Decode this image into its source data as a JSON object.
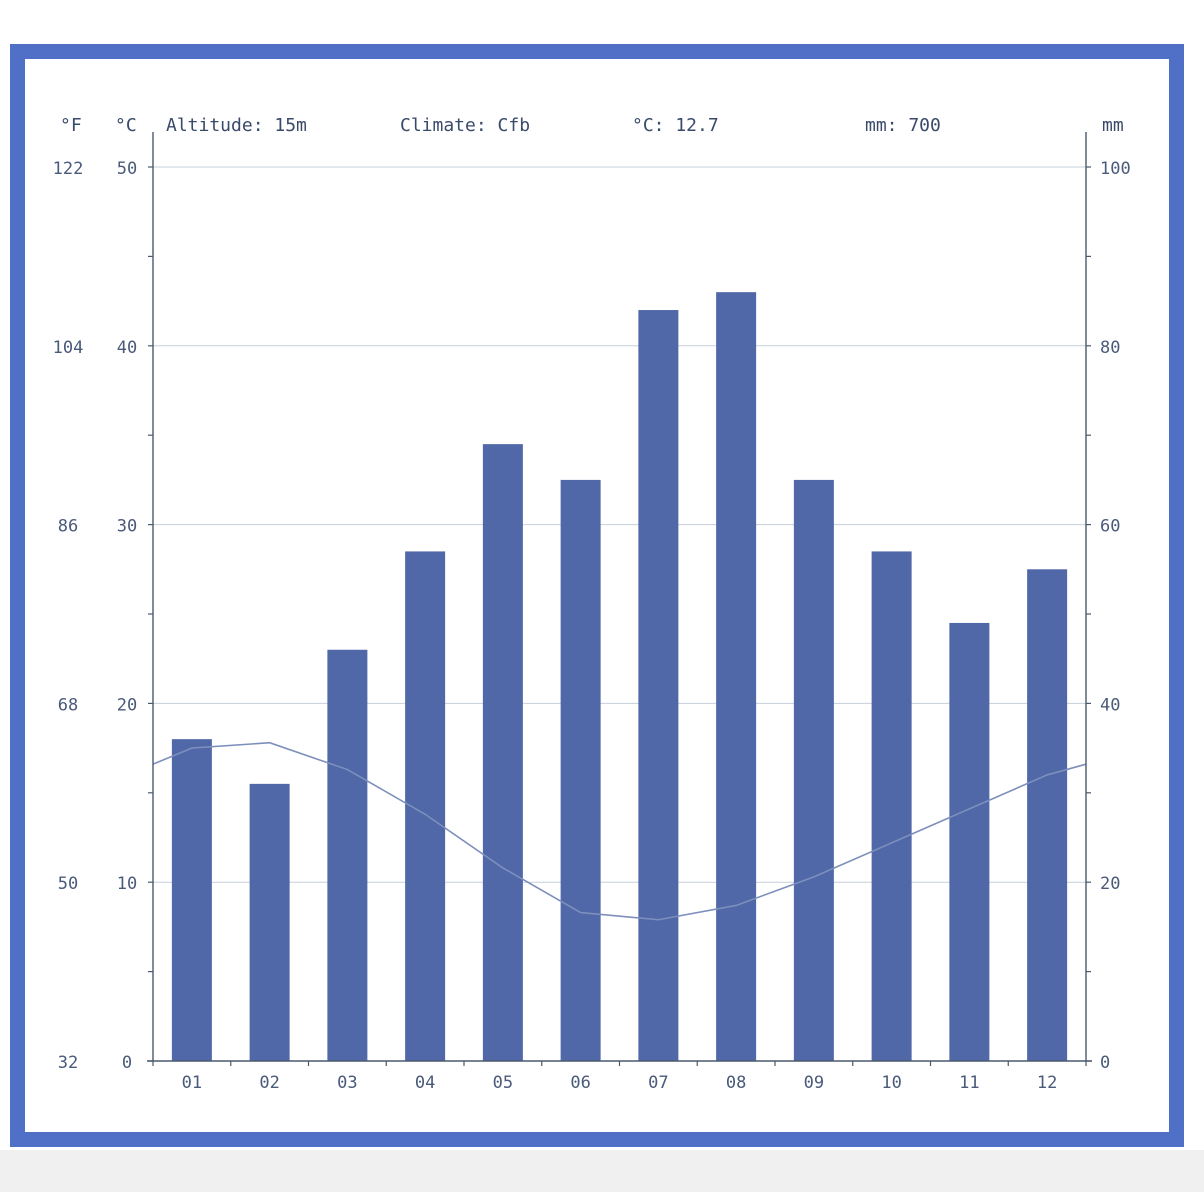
{
  "colors": {
    "frame": "#4f70c6",
    "bar": "#5067a8",
    "line": "#7d8fbc",
    "axis": "#4a5a6e",
    "grid": "#c7cfdc",
    "text": "#4a5a7a"
  },
  "header": {
    "unit_f": "°F",
    "unit_c": "°C",
    "altitude": "Altitude: 15m",
    "climate": "Climate: Cfb",
    "mean_temp": "°C: 12.7",
    "total_precip": "mm: 700",
    "unit_mm": "mm"
  },
  "chart_data": {
    "type": "bar",
    "categories": [
      "01",
      "02",
      "03",
      "04",
      "05",
      "06",
      "07",
      "08",
      "09",
      "10",
      "11",
      "12"
    ],
    "series": [
      {
        "type": "bar",
        "axis": "right",
        "values": [
          36,
          31,
          46,
          57,
          69,
          65,
          84,
          86,
          65,
          57,
          49,
          55
        ]
      },
      {
        "type": "line",
        "axis": "left",
        "values": [
          17.5,
          17.8,
          16.3,
          13.8,
          10.8,
          8.3,
          7.9,
          8.7,
          10.3,
          12.2,
          14.1,
          16.0
        ],
        "edge_values": [
          16.6,
          16.6
        ]
      }
    ],
    "y_left_c": {
      "ylim": [
        0,
        50
      ],
      "ticks": [
        0,
        10,
        20,
        30,
        40,
        50
      ]
    },
    "y_left_f": {
      "ticks": [
        32,
        50,
        68,
        86,
        104,
        122
      ]
    },
    "y_right_mm": {
      "ylim": [
        0,
        100
      ],
      "ticks": [
        0,
        20,
        40,
        60,
        80,
        100
      ]
    },
    "grid": true
  }
}
